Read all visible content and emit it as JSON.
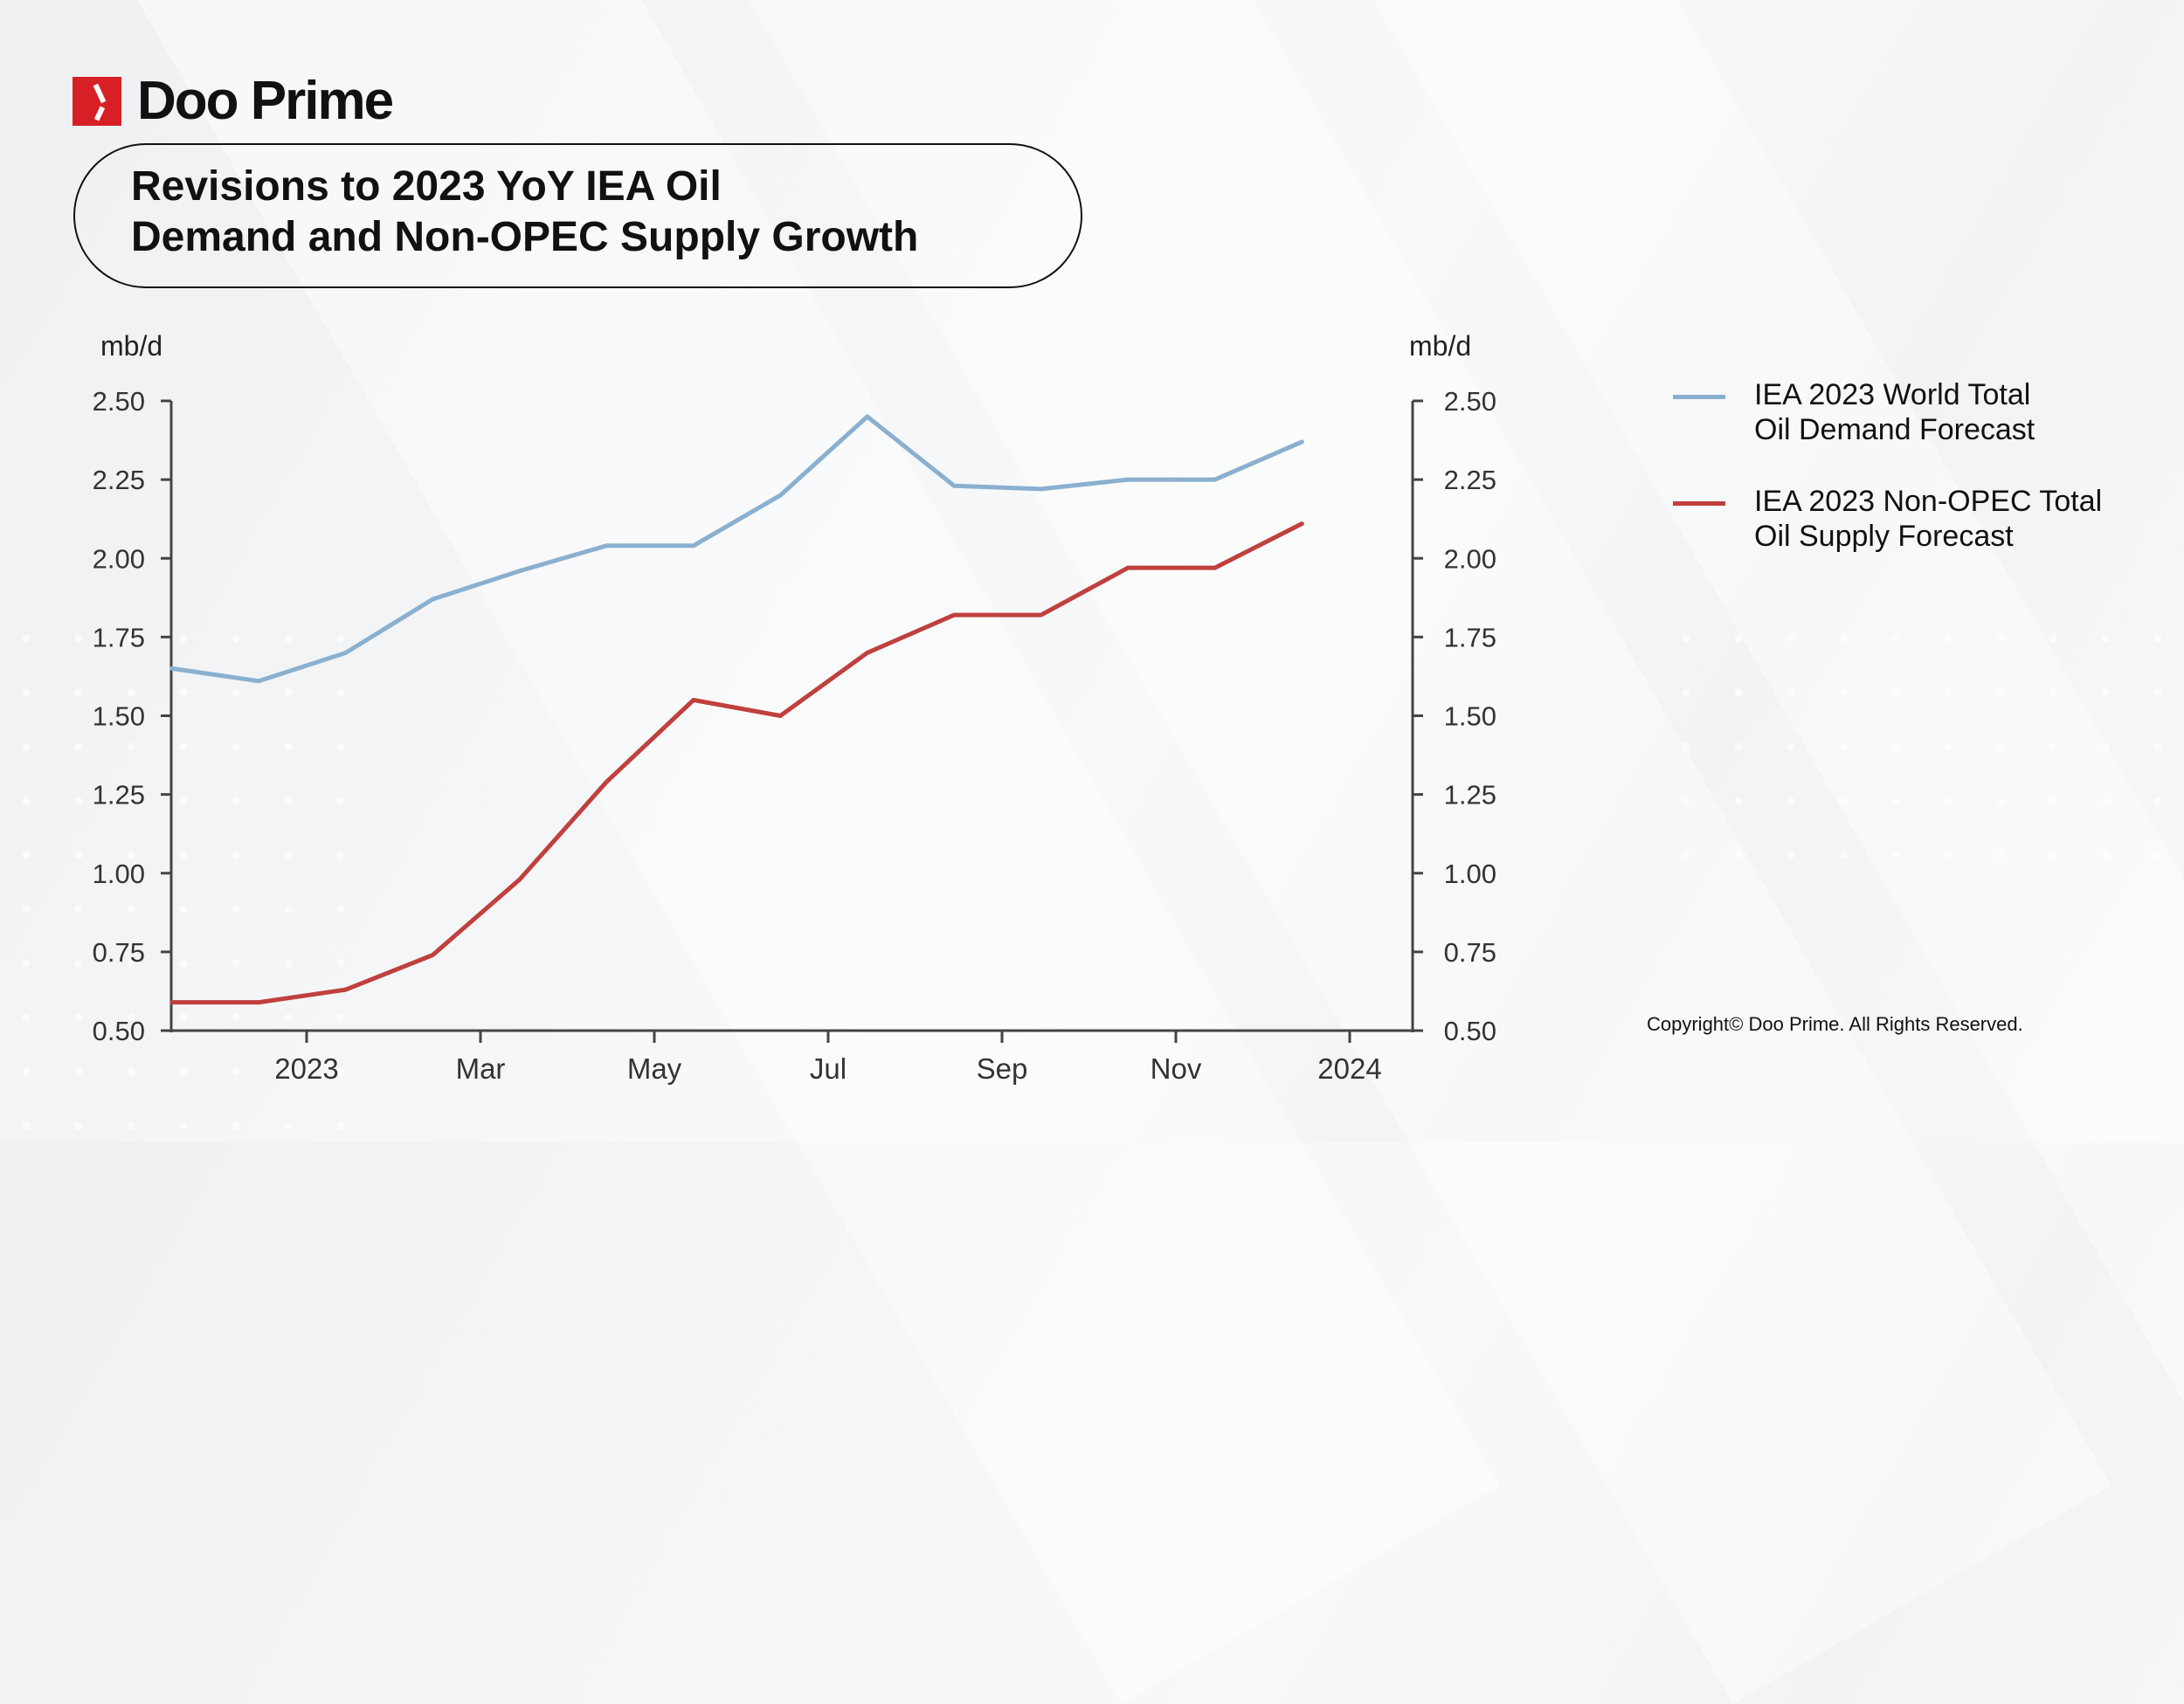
{
  "brand": {
    "name": "Doo Prime",
    "accent": "#d71f26"
  },
  "title_lines": [
    "Revisions to 2023 YoY IEA Oil",
    "Demand and Non-OPEC Supply Growth"
  ],
  "copyright": "Copyright© Doo Prime. All Rights Reserved.",
  "chart_data": {
    "type": "line",
    "title": "Revisions to 2023 YoY IEA Oil Demand and Non-OPEC Supply Growth",
    "ylabel_left": "mb/d",
    "ylabel_right": "mb/d",
    "ylim": [
      0.5,
      2.5
    ],
    "yticks": [
      "2.50",
      "2.25",
      "2.00",
      "1.75",
      "1.50",
      "1.25",
      "1.00",
      "0.75",
      "0.50"
    ],
    "ytick_values": [
      2.5,
      2.25,
      2.0,
      1.75,
      1.5,
      1.25,
      1.0,
      0.75,
      0.5
    ],
    "xlim_months_from_2023_01": [
      -2.3,
      12.3
    ],
    "xticks": [
      {
        "label": "2023",
        "month": 0
      },
      {
        "label": "Mar",
        "month": 2
      },
      {
        "label": "May",
        "month": 4
      },
      {
        "label": "Jul",
        "month": 6
      },
      {
        "label": "Sep",
        "month": 8
      },
      {
        "label": "Nov",
        "month": 10
      },
      {
        "label": "2024",
        "month": 12
      }
    ],
    "x_months_from_2023_01": [
      -1.55,
      -0.55,
      0.45,
      1.45,
      2.45,
      3.45,
      4.45,
      5.45,
      6.45,
      7.45,
      8.45,
      9.45,
      10.45,
      11.45
    ],
    "series": [
      {
        "name": "IEA 2023 World Total Oil Demand Forecast",
        "legend_lines": [
          "IEA 2023 World Total",
          "Oil Demand Forecast"
        ],
        "color": "#8ab0d0",
        "values": [
          1.65,
          1.61,
          1.7,
          1.87,
          1.96,
          2.04,
          2.04,
          2.2,
          2.45,
          2.23,
          2.22,
          2.25,
          2.25,
          2.37
        ]
      },
      {
        "name": "IEA 2023 Non-OPEC Total Oil Supply Forecast",
        "legend_lines": [
          "IEA 2023 Non-OPEC Total",
          "Oil Supply Forecast"
        ],
        "color": "#c0403d",
        "values": [
          0.59,
          0.59,
          0.63,
          0.74,
          0.98,
          1.29,
          1.55,
          1.5,
          1.7,
          1.82,
          1.82,
          1.97,
          1.97,
          2.11
        ]
      }
    ],
    "legend_position": "right",
    "grid": false
  }
}
